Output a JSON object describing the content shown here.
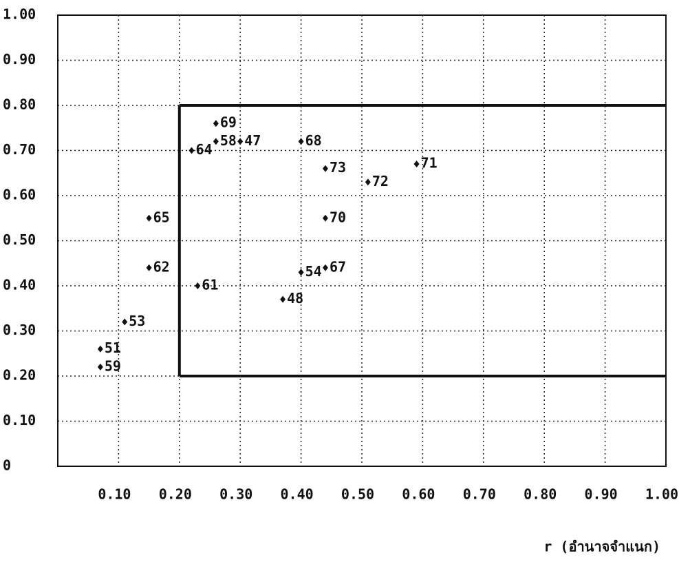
{
  "chart_data": {
    "type": "scatter",
    "x_label": "r (อำนาจจำแนก)",
    "series": [
      {
        "color": "#111111",
        "labels": [
          "69",
          "58",
          "64",
          "47",
          "68",
          "73",
          "72",
          "71",
          "65",
          "70",
          "62",
          "67",
          "54",
          "61",
          "48",
          "53",
          "51",
          "59"
        ],
        "x": [
          0.26,
          0.26,
          0.22,
          0.3,
          0.4,
          0.44,
          0.51,
          0.59,
          0.15,
          0.44,
          0.15,
          0.44,
          0.4,
          0.23,
          0.37,
          0.11,
          0.07,
          0.07
        ],
        "values": [
          0.76,
          0.72,
          0.7,
          0.72,
          0.72,
          0.66,
          0.63,
          0.67,
          0.55,
          0.55,
          0.44,
          0.44,
          0.43,
          0.4,
          0.37,
          0.32,
          0.26,
          0.22
        ]
      }
    ],
    "xlim": [
      0,
      1
    ],
    "ylim": [
      0,
      1
    ],
    "xticks": [
      {
        "value": 0.1,
        "label": "0.10"
      },
      {
        "value": 0.2,
        "label": "0.20"
      },
      {
        "value": 0.3,
        "label": "0.30"
      },
      {
        "value": 0.4,
        "label": "0.40"
      },
      {
        "value": 0.5,
        "label": "0.50"
      },
      {
        "value": 0.6,
        "label": "0.60"
      },
      {
        "value": 0.7,
        "label": "0.70"
      },
      {
        "value": 0.8,
        "label": "0.80"
      },
      {
        "value": 0.9,
        "label": "0.90"
      },
      {
        "value": 1,
        "label": "1.00"
      }
    ],
    "yticks": [
      0,
      {
        "value": 0.1,
        "label": "0.10"
      },
      {
        "value": 0.2,
        "label": "0.20"
      },
      {
        "value": 0.3,
        "label": "0.30"
      },
      {
        "value": 0.4,
        "label": "0.40"
      },
      {
        "value": 0.5,
        "label": "0.50"
      },
      {
        "value": 0.6,
        "label": "0.60"
      },
      {
        "value": 0.7,
        "label": "0.70"
      },
      {
        "value": 0.8,
        "label": "0.80"
      },
      {
        "value": 0.9,
        "label": "0.90"
      },
      {
        "value": 1,
        "label": "1.00"
      }
    ],
    "grid": true
  }
}
